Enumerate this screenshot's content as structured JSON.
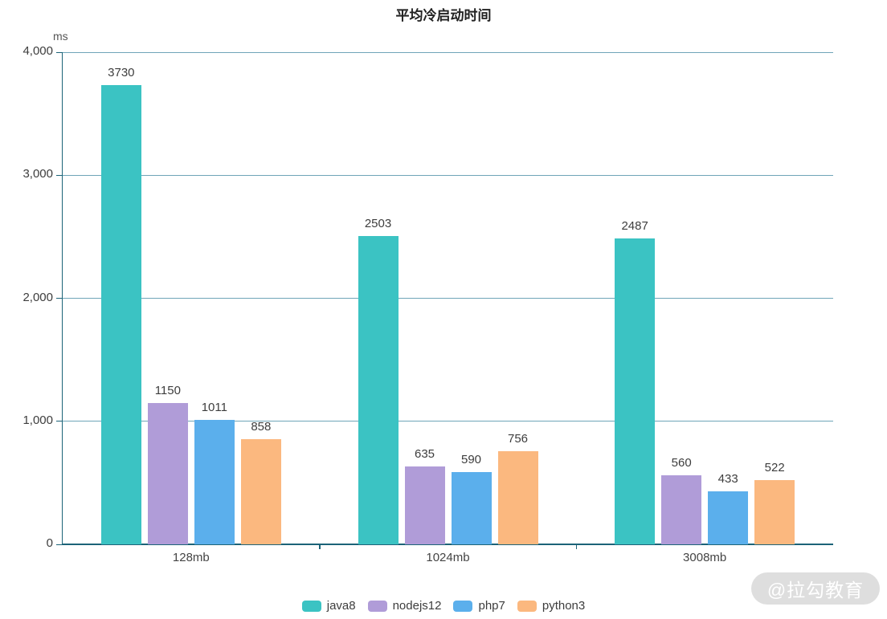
{
  "title": "平均冷启动时间",
  "chart_data": {
    "type": "bar",
    "title": "平均冷启动时间",
    "unit_label": "ms",
    "categories": [
      "128mb",
      "1024mb",
      "3008mb"
    ],
    "series": [
      {
        "name": "java8",
        "color": "#3BC3C3",
        "values": [
          3730,
          2503,
          2487
        ]
      },
      {
        "name": "nodejs12",
        "color": "#B09CD8",
        "values": [
          1150,
          635,
          560
        ]
      },
      {
        "name": "php7",
        "color": "#5BAFEC",
        "values": [
          1011,
          590,
          433
        ]
      },
      {
        "name": "python3",
        "color": "#FBB87F",
        "values": [
          858,
          756,
          522
        ]
      }
    ],
    "y_axis": {
      "min": 0,
      "max": 4000,
      "tick_values": [
        0,
        1000,
        2000,
        3000,
        4000
      ],
      "tick_labels": [
        "0",
        "1,000",
        "2,000",
        "3,000",
        "4,000"
      ]
    },
    "grid": true,
    "legend_position": "bottom"
  },
  "colors": {
    "axis": "#1C6378",
    "gridline": "#6FA5B8",
    "watermark_bg": "#DEDEDE",
    "watermark_text": "#FFFFFF"
  },
  "watermark": "@拉勾教育"
}
